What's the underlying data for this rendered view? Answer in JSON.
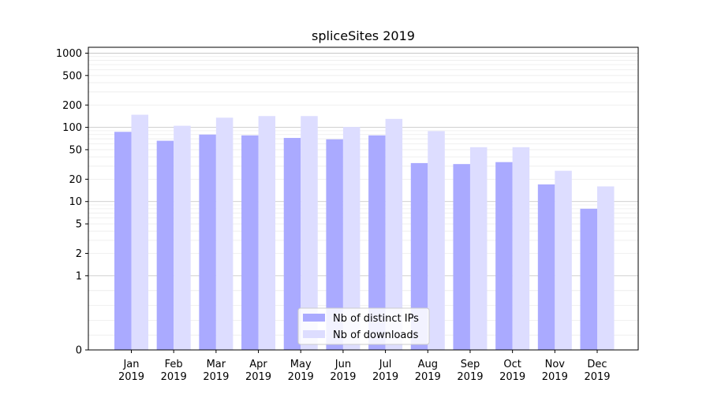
{
  "chart_data": {
    "type": "bar",
    "title": "spliceSites 2019",
    "xlabel": "",
    "ylabel": "",
    "yscale": "symlog",
    "ylim": [
      0,
      1200
    ],
    "yticks": [
      0,
      1,
      2,
      5,
      10,
      20,
      50,
      100,
      200,
      500,
      1000
    ],
    "ytick_labels": [
      "0",
      "1",
      "2",
      "5",
      "10",
      "20",
      "50",
      "100",
      "200",
      "500",
      "1000"
    ],
    "grid": true,
    "legend_position": "lower-center",
    "categories": [
      [
        "Jan",
        "2019"
      ],
      [
        "Feb",
        "2019"
      ],
      [
        "Mar",
        "2019"
      ],
      [
        "Apr",
        "2019"
      ],
      [
        "May",
        "2019"
      ],
      [
        "Jun",
        "2019"
      ],
      [
        "Jul",
        "2019"
      ],
      [
        "Aug",
        "2019"
      ],
      [
        "Sep",
        "2019"
      ],
      [
        "Oct",
        "2019"
      ],
      [
        "Nov",
        "2019"
      ],
      [
        "Dec",
        "2019"
      ]
    ],
    "series": [
      {
        "name": "Nb of distinct IPs",
        "color": "#aaaaff",
        "values": [
          87,
          66,
          80,
          78,
          72,
          69,
          78,
          33,
          32,
          34,
          17,
          8
        ]
      },
      {
        "name": "Nb of downloads",
        "color": "#ddddff",
        "values": [
          148,
          105,
          135,
          142,
          142,
          101,
          130,
          89,
          54,
          54,
          26,
          16
        ]
      }
    ]
  }
}
